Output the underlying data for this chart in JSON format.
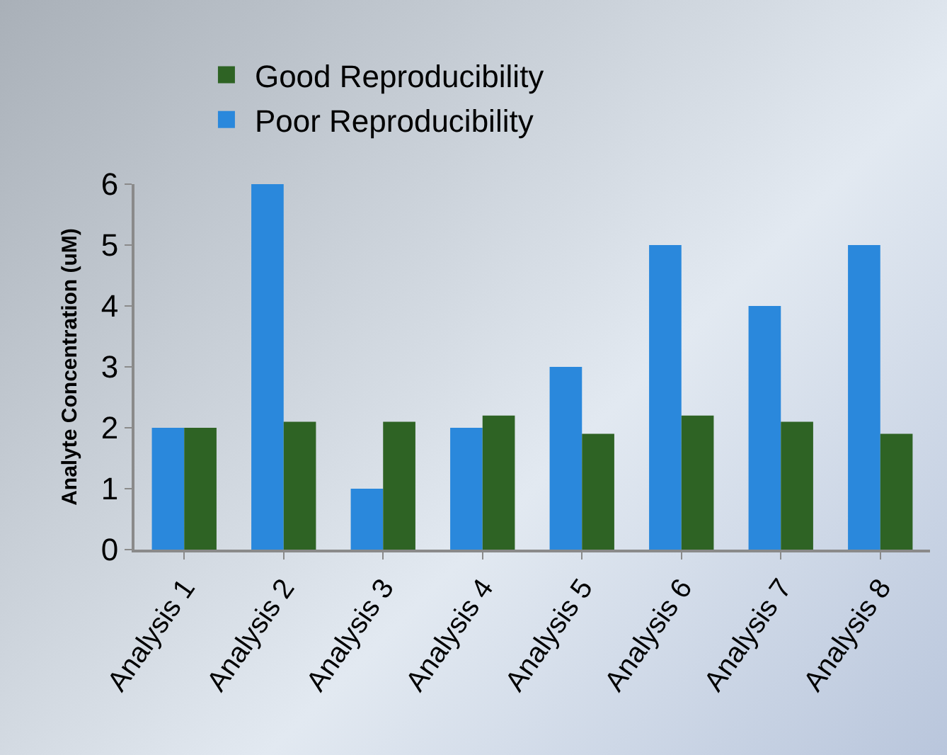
{
  "chart_data": {
    "type": "bar",
    "ylabel": "Analyte Concentration (uM)",
    "categories": [
      "Analysis 1",
      "Analysis 2",
      "Analysis 3",
      "Analysis 4",
      "Analysis 5",
      "Analysis 6",
      "Analysis 7",
      "Analysis 8"
    ],
    "series": [
      {
        "name": "Poor Reproducibility",
        "color": "#2a88dc",
        "values": [
          2,
          6,
          1,
          2,
          3,
          5,
          4,
          5
        ]
      },
      {
        "name": "Good Reproducibility",
        "color": "#2e6324",
        "values": [
          2,
          2.1,
          2.1,
          2.2,
          1.9,
          2.2,
          2.1,
          1.9
        ]
      }
    ],
    "ylim": [
      0,
      6
    ],
    "yticks": [
      0,
      1,
      2,
      3,
      4,
      5,
      6
    ],
    "grid": false,
    "legend": "top left"
  }
}
